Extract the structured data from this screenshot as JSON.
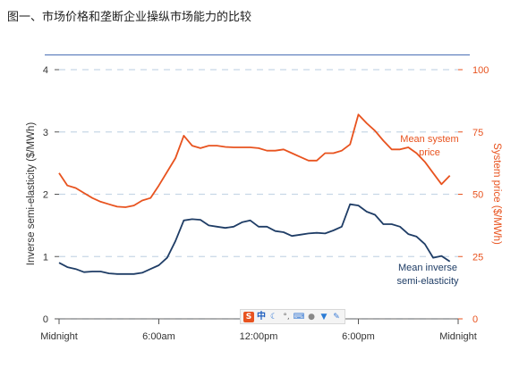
{
  "caption": "图一、市场价格和垄断企业操纵市场能力的比较",
  "ime_toolbar": {
    "logo": "S",
    "lang": "中",
    "icons": [
      "sogou-logo-icon",
      "chinese-mode-icon",
      "moon-icon",
      "punctuation-icon",
      "keyboard-icon",
      "user-icon",
      "skin-icon",
      "wrench-icon"
    ]
  },
  "colors": {
    "price": "#e8531f",
    "inverse": "#1f3d66",
    "grid": "#c7d8e6",
    "rule": "#4a6fb5"
  },
  "chart_data": {
    "type": "line",
    "xlabel": "",
    "ylabel": "Inverse semi-elasticity ($/MWh)",
    "y2label": "System price ($/MWh)",
    "xlim": [
      0,
      24
    ],
    "ylim": [
      0,
      4
    ],
    "y2lim": [
      0,
      100
    ],
    "x_ticks": [
      0,
      6,
      12,
      18,
      24
    ],
    "x_tick_labels": [
      "Midnight",
      "6:00am",
      "12:00pm",
      "6:00pm",
      "Midnight"
    ],
    "y_ticks": [
      0,
      1,
      2,
      3,
      4
    ],
    "y_tick_labels": [
      "0",
      "1",
      "2",
      "3",
      "4"
    ],
    "y2_ticks": [
      0,
      25,
      50,
      75,
      100
    ],
    "y2_tick_labels": [
      "0",
      "25",
      "50",
      "75",
      "100"
    ],
    "grid": "horizontal dashed",
    "x": [
      0,
      0.5,
      1,
      1.5,
      2,
      2.5,
      3,
      3.5,
      4,
      4.5,
      5,
      5.5,
      6,
      6.5,
      7,
      7.5,
      8,
      8.5,
      9,
      9.5,
      10,
      10.5,
      11,
      11.5,
      12,
      12.5,
      13,
      13.5,
      14,
      14.5,
      15,
      15.5,
      16,
      16.5,
      17,
      17.5,
      18,
      18.5,
      19,
      19.5,
      20,
      20.5,
      21,
      21.5,
      22,
      22.5,
      23,
      23.5
    ],
    "series": [
      {
        "key": "price",
        "name": "Mean system price",
        "label_lines": [
          "Mean system",
          "price"
        ],
        "axis": "right",
        "values": [
          58.5,
          53.5,
          52.5,
          50.5,
          48.5,
          47,
          46,
          45,
          44.8,
          45.5,
          47.5,
          48.5,
          53.5,
          59,
          64.5,
          73.5,
          69.5,
          68.5,
          69.5,
          69.5,
          69,
          68.8,
          68.8,
          68.8,
          68.5,
          67.5,
          67.5,
          68,
          66.5,
          65,
          63.5,
          63.5,
          66.5,
          66.5,
          67.5,
          70,
          82,
          78.5,
          75.5,
          71.5,
          68,
          68,
          68.8,
          66.5,
          63,
          58.5,
          54,
          57.5
        ]
      },
      {
        "key": "inverse",
        "name": "Mean inverse semi-elasticity",
        "label_lines": [
          "Mean inverse",
          "semi-elasticity"
        ],
        "axis": "left",
        "values": [
          0.9,
          0.83,
          0.8,
          0.75,
          0.76,
          0.76,
          0.73,
          0.72,
          0.72,
          0.72,
          0.74,
          0.8,
          0.86,
          0.98,
          1.25,
          1.58,
          1.6,
          1.59,
          1.5,
          1.48,
          1.46,
          1.48,
          1.55,
          1.58,
          1.48,
          1.48,
          1.41,
          1.39,
          1.33,
          1.35,
          1.37,
          1.38,
          1.37,
          1.42,
          1.48,
          1.84,
          1.82,
          1.72,
          1.67,
          1.52,
          1.52,
          1.48,
          1.36,
          1.32,
          1.2,
          0.98,
          1.01,
          0.92
        ]
      }
    ]
  }
}
